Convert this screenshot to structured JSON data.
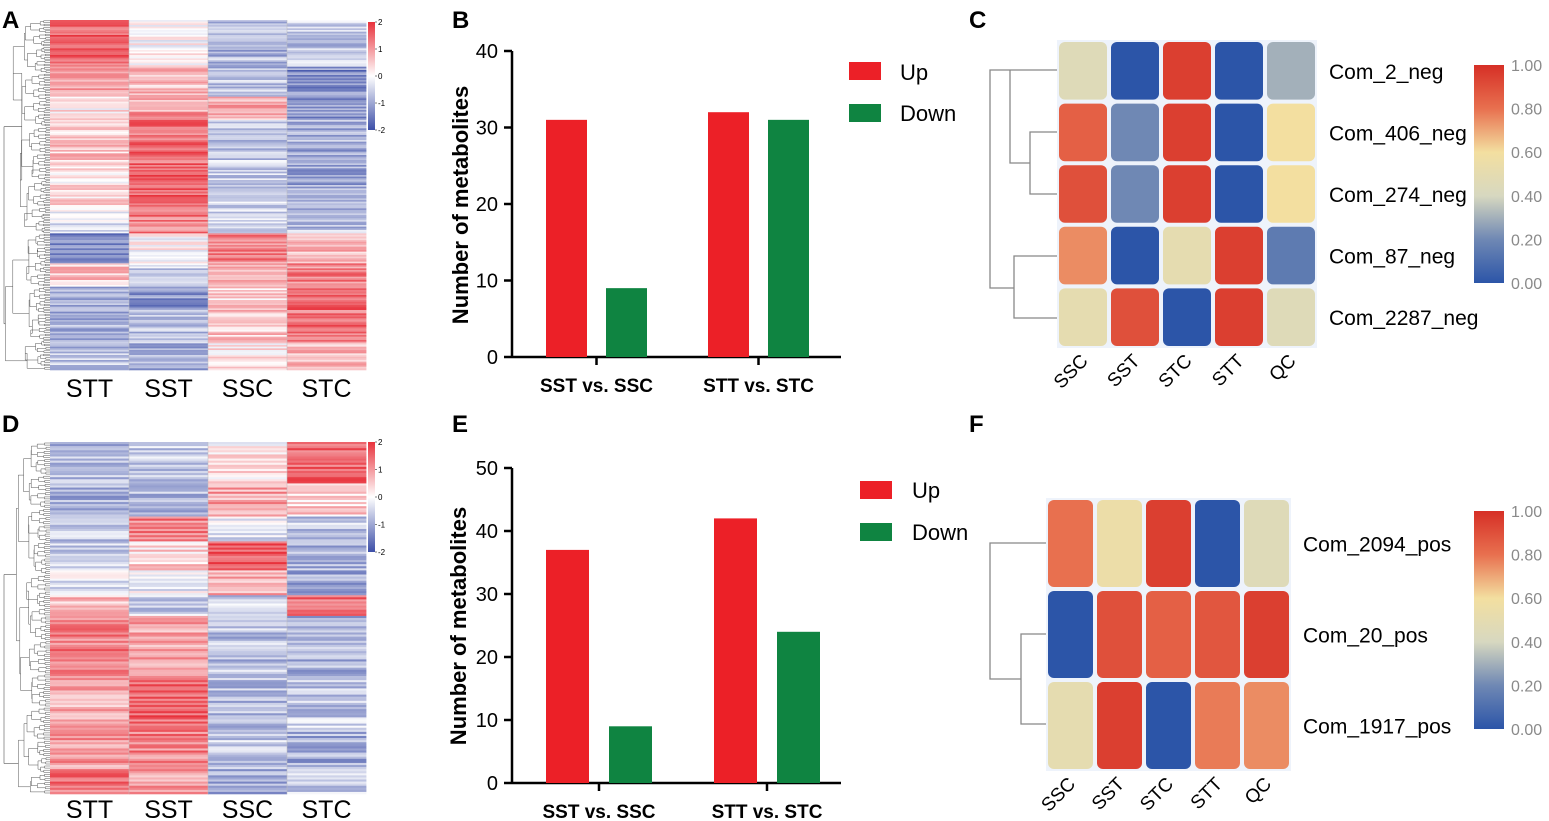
{
  "panel_labels": [
    "A",
    "B",
    "C",
    "D",
    "E",
    "F"
  ],
  "chart_data": [
    {
      "panel": "A",
      "type": "heatmap",
      "columns": [
        "STT",
        "SST",
        "SSC",
        "STC"
      ],
      "colorbar_ticks": [
        "2",
        "1",
        "0",
        "-1",
        "-2"
      ],
      "blocks": [
        {
          "rows": 28,
          "values": [
            1.5,
            0.0,
            -0.8,
            -0.6
          ]
        },
        {
          "rows": 18,
          "values": [
            1.0,
            0.7,
            -0.7,
            -1.3
          ]
        },
        {
          "rows": 14,
          "values": [
            0.2,
            0.9,
            0.8,
            -1.2
          ]
        },
        {
          "rows": 30,
          "values": [
            0.5,
            1.4,
            -0.6,
            -0.9
          ]
        },
        {
          "rows": 24,
          "values": [
            0.3,
            1.6,
            -0.5,
            -1.0
          ]
        },
        {
          "rows": 14,
          "values": [
            -0.2,
            1.3,
            -0.6,
            -0.7
          ]
        },
        {
          "rows": 18,
          "values": [
            -1.3,
            0.1,
            1.2,
            0.6
          ]
        },
        {
          "rows": 14,
          "values": [
            0.5,
            -0.6,
            0.6,
            1.2
          ]
        },
        {
          "rows": 14,
          "values": [
            -1.0,
            -1.2,
            0.4,
            1.5
          ]
        },
        {
          "rows": 20,
          "values": [
            -0.8,
            -0.7,
            0.6,
            1.4
          ]
        },
        {
          "rows": 16,
          "values": [
            -0.7,
            -0.9,
            0.3,
            0.8
          ]
        }
      ]
    },
    {
      "panel": "B",
      "type": "bar",
      "categories": [
        "SST vs. SSC",
        "STT vs. STC"
      ],
      "series": [
        {
          "name": "Up",
          "values": [
            31,
            32
          ],
          "color": "#ec2027"
        },
        {
          "name": "Down",
          "values": [
            9,
            31
          ],
          "color": "#0f8441"
        }
      ],
      "ylabel": "Number of metabolites",
      "ylim": [
        0,
        40
      ],
      "yticks": [
        0,
        10,
        20,
        30,
        40
      ]
    },
    {
      "panel": "C",
      "type": "heatmap",
      "columns": [
        "SSC",
        "SST",
        "STC",
        "STT",
        "QC"
      ],
      "rows": [
        "Com_2_neg",
        "Com_406_neg",
        "Com_274_neg",
        "Com_87_neg",
        "Com_2287_neg"
      ],
      "values": [
        [
          0.45,
          0.0,
          0.95,
          0.0,
          0.3
        ],
        [
          0.85,
          0.2,
          0.95,
          0.0,
          0.6
        ],
        [
          0.9,
          0.2,
          0.95,
          0.0,
          0.6
        ],
        [
          0.75,
          0.0,
          0.5,
          0.95,
          0.15
        ],
        [
          0.5,
          0.9,
          0.0,
          0.95,
          0.45
        ]
      ],
      "colorbar_ticks": [
        "1.00",
        "0.80",
        "0.60",
        "0.40",
        "0.20",
        "0.00"
      ]
    },
    {
      "panel": "D",
      "type": "heatmap",
      "columns": [
        "STT",
        "SST",
        "SSC",
        "STC"
      ],
      "colorbar_ticks": [
        "2",
        "1",
        "0",
        "-1",
        "-2"
      ],
      "blocks": [
        {
          "rows": 20,
          "values": [
            -0.8,
            -0.6,
            0.2,
            1.5
          ]
        },
        {
          "rows": 16,
          "values": [
            -0.9,
            -0.8,
            0.9,
            0.5
          ]
        },
        {
          "rows": 12,
          "values": [
            -0.6,
            1.2,
            -0.3,
            -0.6
          ]
        },
        {
          "rows": 14,
          "values": [
            -0.5,
            0.4,
            1.7,
            -0.8
          ]
        },
        {
          "rows": 12,
          "values": [
            -0.3,
            -0.2,
            0.7,
            -1.0
          ]
        },
        {
          "rows": 10,
          "values": [
            0.6,
            -0.5,
            -0.6,
            1.4
          ]
        },
        {
          "rows": 30,
          "values": [
            1.2,
            0.9,
            -0.7,
            -0.8
          ]
        },
        {
          "rows": 26,
          "values": [
            0.8,
            1.5,
            -0.8,
            -0.6
          ]
        },
        {
          "rows": 18,
          "values": [
            1.0,
            1.2,
            -0.6,
            -0.9
          ]
        },
        {
          "rows": 12,
          "values": [
            1.3,
            0.9,
            -1.0,
            -0.5
          ]
        }
      ]
    },
    {
      "panel": "E",
      "type": "bar",
      "categories": [
        "SST vs. SSC",
        "STT vs. STC"
      ],
      "series": [
        {
          "name": "Up",
          "values": [
            37,
            42
          ],
          "color": "#ec2027"
        },
        {
          "name": "Down",
          "values": [
            9,
            24
          ],
          "color": "#0f8441"
        }
      ],
      "ylabel": "Number of metabolites",
      "ylim": [
        0,
        50
      ],
      "yticks": [
        0,
        10,
        20,
        30,
        40,
        50
      ]
    },
    {
      "panel": "F",
      "type": "heatmap",
      "columns": [
        "SSC",
        "SST",
        "STC",
        "STT",
        "QC"
      ],
      "rows": [
        "Com_2094_pos",
        "Com_20_pos",
        "Com_1917_pos"
      ],
      "values": [
        [
          0.8,
          0.55,
          0.95,
          0.0,
          0.45
        ],
        [
          0.0,
          0.9,
          0.85,
          0.88,
          0.95
        ],
        [
          0.5,
          0.95,
          0.0,
          0.78,
          0.75
        ]
      ],
      "colorbar_ticks": [
        "1.00",
        "0.80",
        "0.60",
        "0.40",
        "0.20",
        "0.00"
      ]
    }
  ]
}
